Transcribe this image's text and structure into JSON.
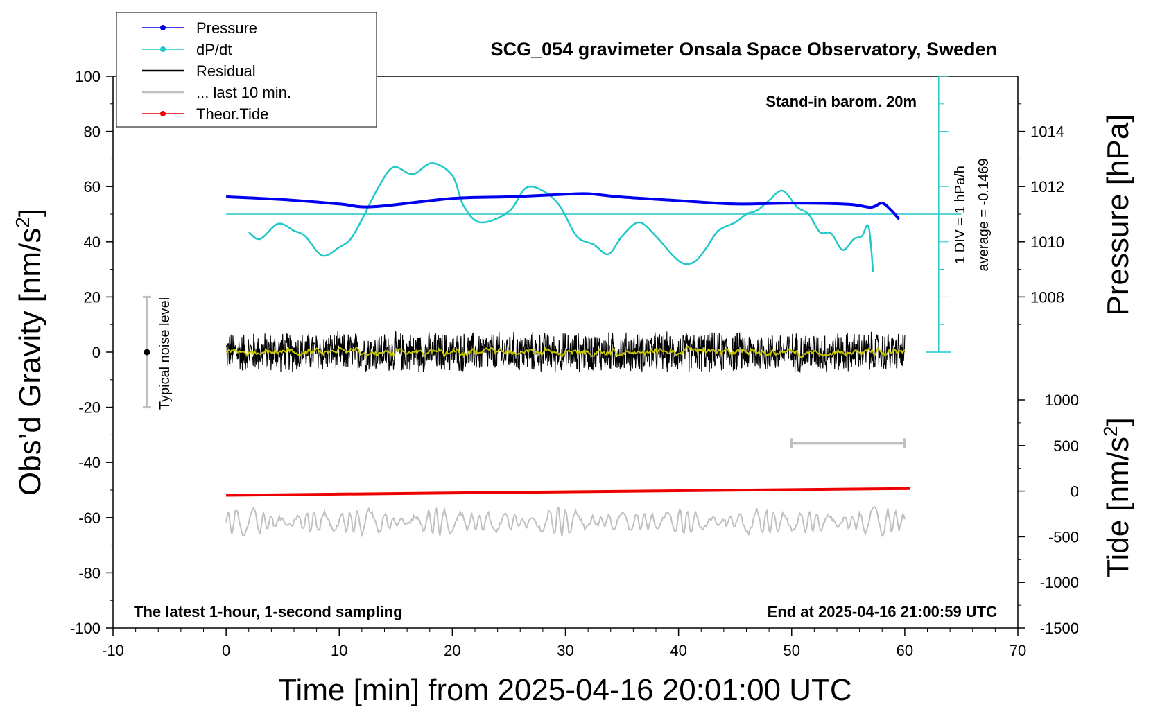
{
  "chart_data": {
    "type": "line",
    "title": "SCG_054 gravimeter Onsala Space Observatory, Sweden",
    "xlabel": "Time [min] from 2025-04-16 20:01:00 UTC",
    "ylabel_left": "Obs’d Gravity [nm/s",
    "ylabel_left_sup": "2",
    "ylabel_left_end": "]",
    "ylabel_right_pressure": "Pressure [hPa]",
    "ylabel_right_tide": "Tide [nm/s",
    "ylabel_right_tide_sup": "2",
    "ylabel_right_tide_end": "]",
    "xlim": [
      -10,
      70
    ],
    "ylim": [
      -100,
      100
    ],
    "x_ticks": [
      "-10",
      "0",
      "10",
      "20",
      "30",
      "40",
      "50",
      "60",
      "70"
    ],
    "y_ticks": [
      "100",
      "80",
      "60",
      "40",
      "20",
      "0",
      "-20",
      "-40",
      "-60",
      "-80",
      "-100"
    ],
    "pressure_axis": {
      "range_hPa": [
        1004,
        1016
      ],
      "ticks": [
        "1014",
        "1012",
        "1010",
        "1008"
      ]
    },
    "tide_axis": {
      "range": [
        -1500,
        1000
      ],
      "ticks": [
        "1000",
        "500",
        "0",
        "-500",
        "-1000",
        "-1500"
      ]
    },
    "legend": [
      {
        "label": "Pressure",
        "color": "#0000ee",
        "style": "line-dot"
      },
      {
        "label": "dP/dt",
        "color": "#20c8c8",
        "style": "line-dot"
      },
      {
        "label": "Residual",
        "color": "#000000",
        "style": "line"
      },
      {
        "label": "... last 10 min.",
        "color": "#c0c0c0",
        "style": "line"
      },
      {
        "label": "Theor.Tide",
        "color": "#ee0000",
        "style": "line-dot"
      }
    ],
    "annotations": {
      "barometer": "Stand-in barom. 20m",
      "dpdt_scale": "1 DIV = 1 hPa/h",
      "dpdt_average": "average = -0.1469",
      "noise": "Typical noise level",
      "bottom_left": "The latest 1-hour, 1-second sampling",
      "bottom_right": "End at 2025-04-16 21:00:59 UTC"
    },
    "noise_bar": {
      "x": -7,
      "center": 0,
      "half_range": 20
    },
    "last10_bar": {
      "x_start": 50,
      "x_end": 60,
      "y": -33
    },
    "dpdt_baseline_gravity": 50,
    "series": [
      {
        "name": "Pressure",
        "unit": "hPa",
        "color": "#0000ee",
        "x": [
          0,
          5,
          10,
          13,
          20,
          25,
          30,
          32,
          35,
          40,
          45,
          50,
          55,
          57,
          58,
          58.8,
          59.5
        ],
        "values": [
          1011.63,
          1011.53,
          1011.37,
          1011.27,
          1011.57,
          1011.63,
          1011.72,
          1011.74,
          1011.62,
          1011.49,
          1011.37,
          1011.4,
          1011.36,
          1011.25,
          1011.4,
          1011.14,
          1010.82
        ]
      },
      {
        "name": "dP/dt",
        "unit": "nm/s2 (plotted)",
        "color": "#20c8c8",
        "x": [
          2,
          3,
          4.6,
          6,
          7,
          8.5,
          10,
          11,
          12,
          13.5,
          14.8,
          16.5,
          18.2,
          20,
          21,
          22.5,
          25,
          26.5,
          28,
          29.5,
          31,
          32.5,
          33.8,
          35,
          36.5,
          38,
          39.5,
          40.5,
          41.5,
          42.5,
          43.5,
          45,
          46,
          47,
          48,
          49.2,
          50.5,
          51.5,
          52.5,
          53.5,
          54.5,
          55.5,
          56.2,
          56.8,
          57.2
        ],
        "values": [
          43.5,
          41,
          46.5,
          44,
          42,
          35,
          38,
          41,
          48,
          60,
          67,
          64.5,
          68.5,
          64,
          53,
          47,
          51,
          59.5,
          58.5,
          53,
          42,
          39,
          35.5,
          42,
          47,
          42,
          35,
          32,
          33,
          38,
          44,
          47,
          50,
          51.5,
          55,
          58.5,
          52.5,
          50,
          43.5,
          43,
          37,
          41,
          42,
          45.5,
          29
        ]
      },
      {
        "name": "Residual",
        "unit": "nm/s2",
        "color": "#000000",
        "x_range": [
          0,
          60
        ],
        "description_values": {
          "mean": 0,
          "amplitude": 8
        }
      },
      {
        "name": "... last 10 min.",
        "unit": "nm/s2",
        "color": "#c0c0c0",
        "x_range": [
          0,
          60
        ],
        "description_values": {
          "mean": -61.5,
          "amplitude": 5
        }
      },
      {
        "name": "Theor.Tide",
        "unit": "nm/s2 (tide axis)",
        "color": "#ee0000",
        "x": [
          0,
          60.5
        ],
        "values": [
          -45,
          30
        ]
      }
    ]
  }
}
